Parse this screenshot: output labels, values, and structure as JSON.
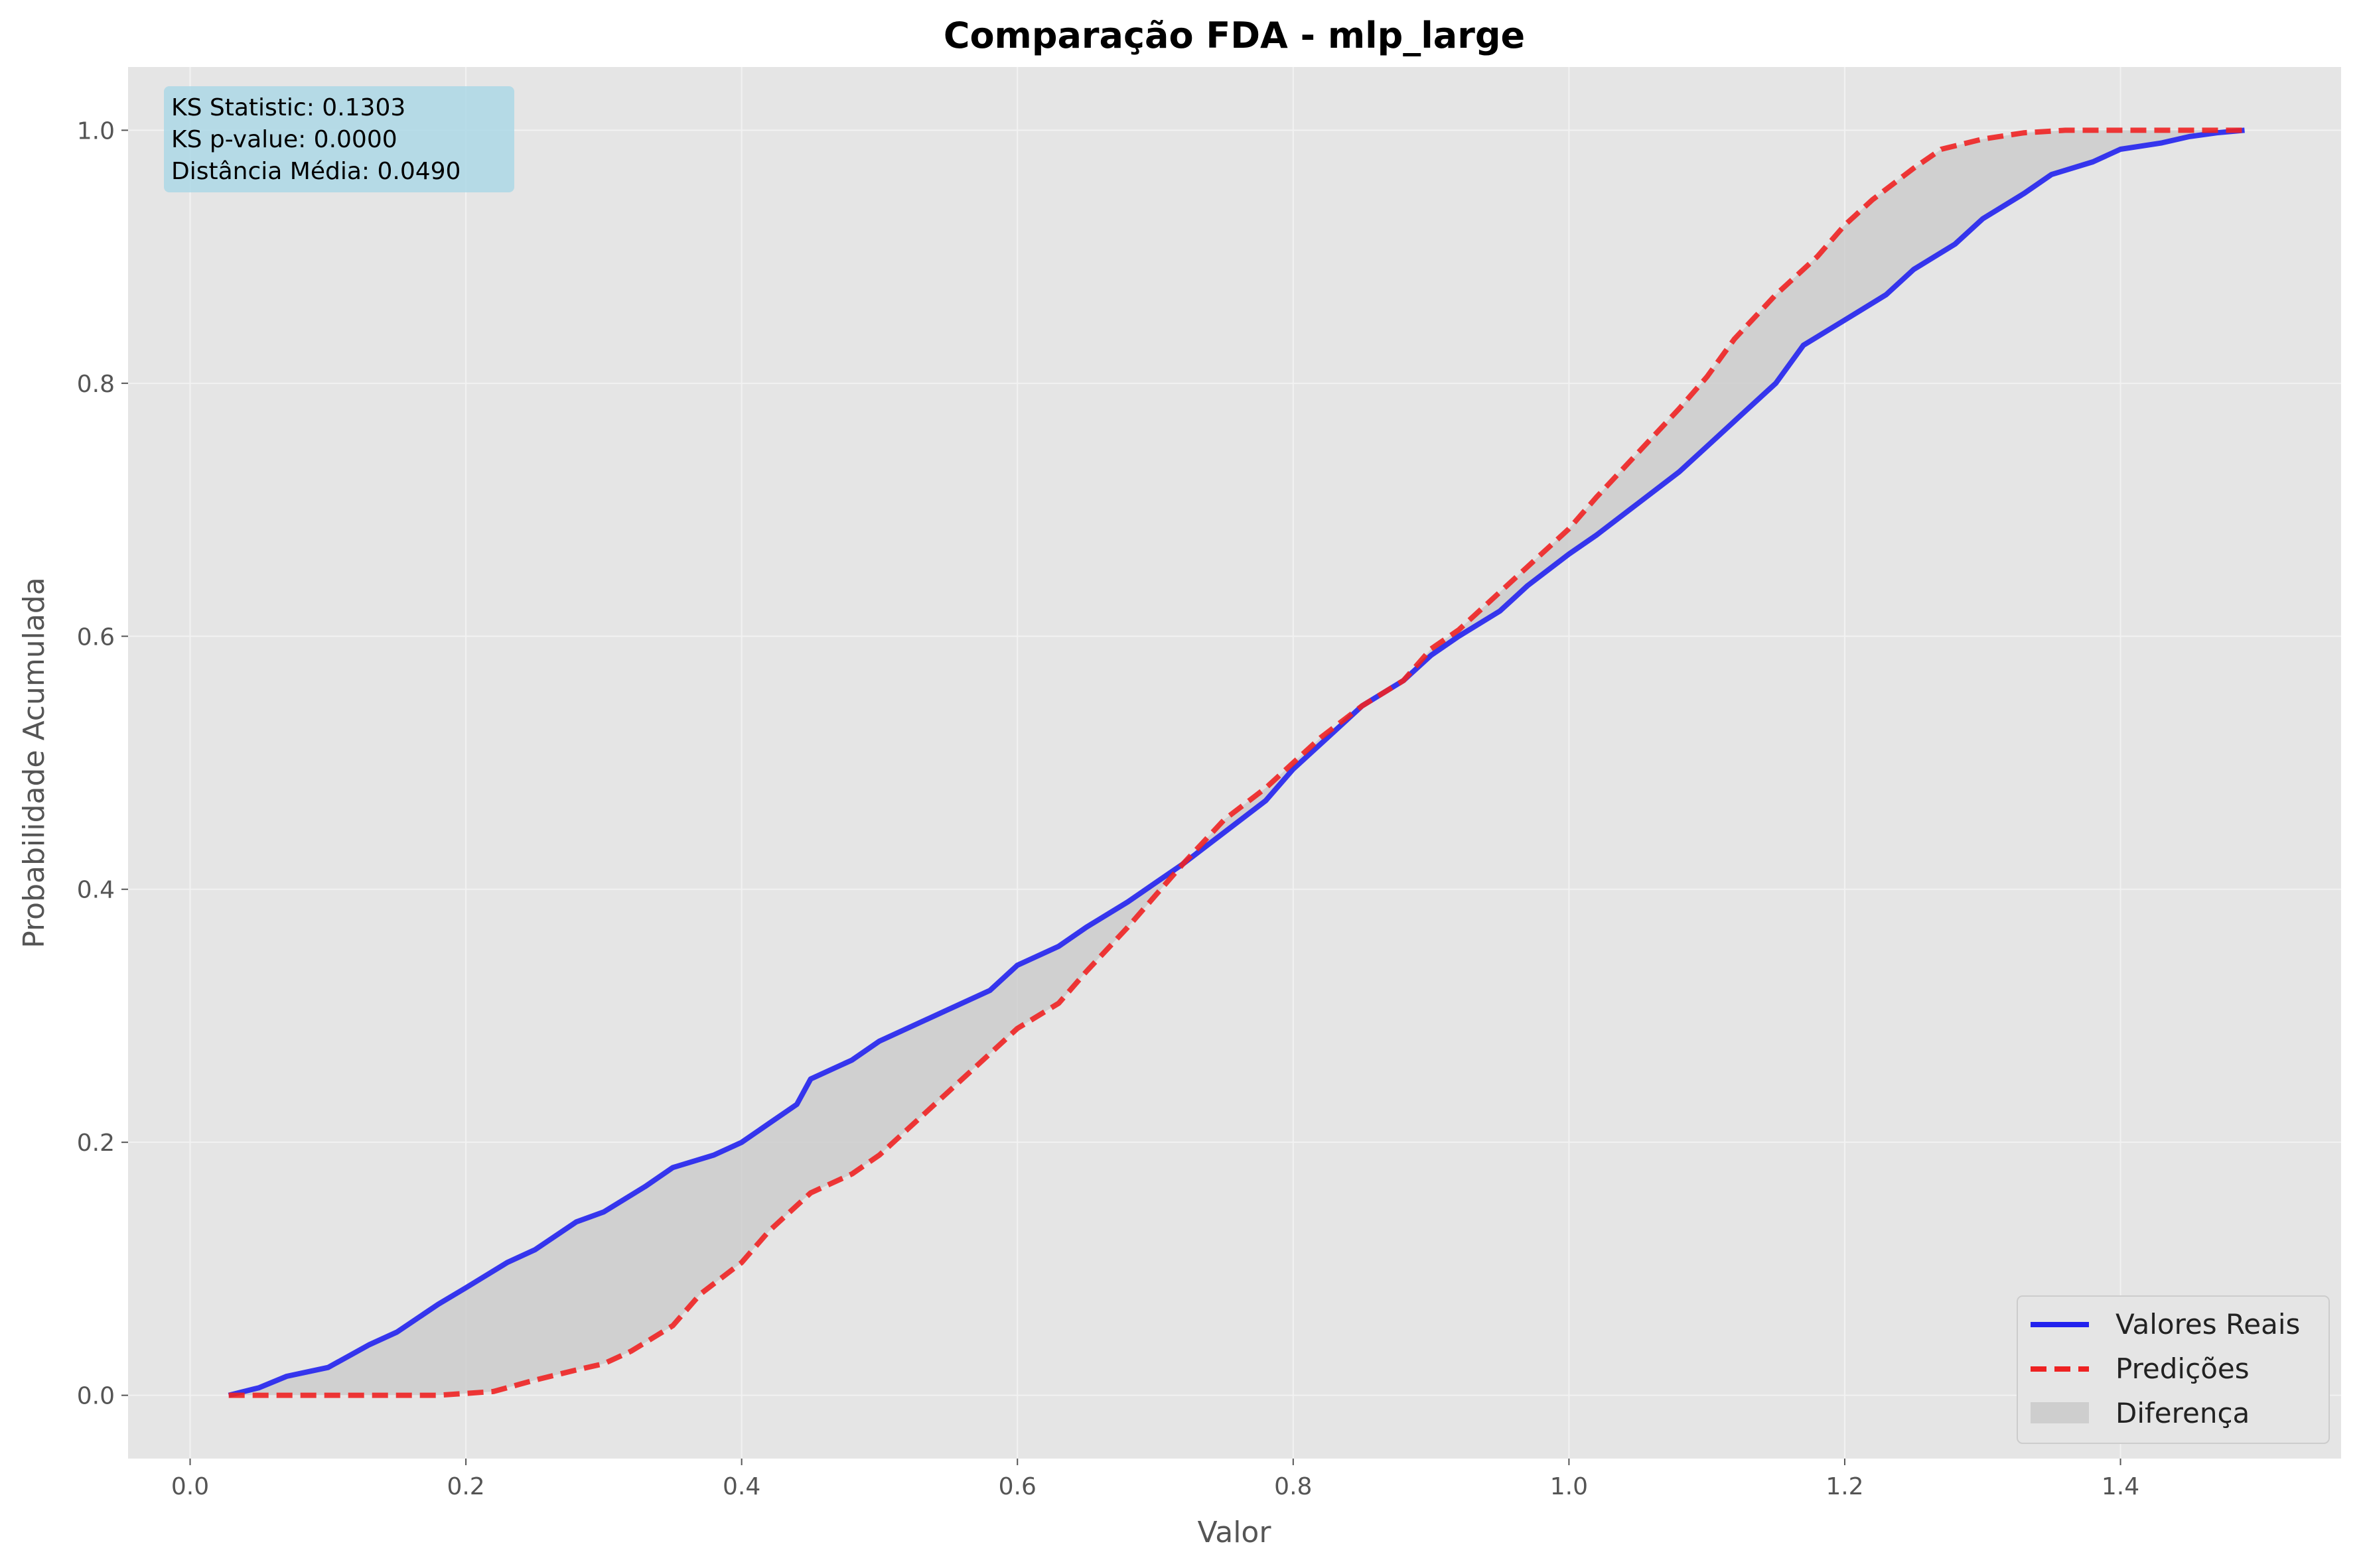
{
  "chart_data": {
    "type": "line",
    "title": "Comparação FDA - mlp_large",
    "xlabel": "Valor",
    "ylabel": "Probabilidade Acumulada",
    "xlim": [
      -0.045,
      1.56
    ],
    "ylim": [
      -0.05,
      1.05
    ],
    "xticks": [
      0.0,
      0.2,
      0.4,
      0.6,
      0.8,
      1.0,
      1.2,
      1.4
    ],
    "yticks": [
      0.0,
      0.2,
      0.4,
      0.6,
      0.8,
      1.0
    ],
    "xtick_labels": [
      "0.0",
      "0.2",
      "0.4",
      "0.6",
      "0.8",
      "1.0",
      "1.2",
      "1.4"
    ],
    "ytick_labels": [
      "0.0",
      "0.2",
      "0.4",
      "0.6",
      "0.8",
      "1.0"
    ],
    "grid": true,
    "legend_position": "lower-right",
    "stats_box": [
      "KS Statistic: 0.1303",
      "KS p-value: 0.0000",
      "Distância Média: 0.0490"
    ],
    "series": [
      {
        "name": "Valores Reais",
        "color": "#2222ee",
        "style": "solid",
        "x": [
          0.028,
          0.05,
          0.07,
          0.1,
          0.13,
          0.15,
          0.18,
          0.2,
          0.23,
          0.25,
          0.28,
          0.3,
          0.33,
          0.35,
          0.38,
          0.4,
          0.42,
          0.44,
          0.45,
          0.48,
          0.5,
          0.52,
          0.55,
          0.58,
          0.6,
          0.63,
          0.65,
          0.68,
          0.7,
          0.72,
          0.75,
          0.78,
          0.8,
          0.82,
          0.85,
          0.88,
          0.9,
          0.92,
          0.95,
          0.97,
          1.0,
          1.02,
          1.05,
          1.08,
          1.1,
          1.12,
          1.15,
          1.17,
          1.2,
          1.23,
          1.25,
          1.28,
          1.3,
          1.33,
          1.35,
          1.38,
          1.4,
          1.43,
          1.45,
          1.47,
          1.49
        ],
        "y": [
          0.0,
          0.006,
          0.015,
          0.022,
          0.04,
          0.05,
          0.072,
          0.085,
          0.105,
          0.115,
          0.137,
          0.145,
          0.165,
          0.18,
          0.19,
          0.2,
          0.215,
          0.23,
          0.25,
          0.265,
          0.28,
          0.29,
          0.305,
          0.32,
          0.34,
          0.355,
          0.37,
          0.39,
          0.405,
          0.42,
          0.445,
          0.47,
          0.495,
          0.515,
          0.545,
          0.565,
          0.585,
          0.6,
          0.62,
          0.64,
          0.665,
          0.68,
          0.705,
          0.73,
          0.75,
          0.77,
          0.8,
          0.83,
          0.85,
          0.87,
          0.89,
          0.91,
          0.93,
          0.95,
          0.965,
          0.975,
          0.985,
          0.99,
          0.995,
          0.998,
          1.0
        ]
      },
      {
        "name": "Predições",
        "color": "#ee2222",
        "style": "dashed",
        "x": [
          0.028,
          0.1,
          0.18,
          0.22,
          0.25,
          0.28,
          0.3,
          0.32,
          0.35,
          0.37,
          0.4,
          0.42,
          0.45,
          0.48,
          0.5,
          0.52,
          0.55,
          0.58,
          0.6,
          0.63,
          0.65,
          0.68,
          0.7,
          0.72,
          0.75,
          0.78,
          0.8,
          0.82,
          0.85,
          0.88,
          0.9,
          0.92,
          0.95,
          0.97,
          1.0,
          1.02,
          1.05,
          1.08,
          1.1,
          1.12,
          1.15,
          1.18,
          1.2,
          1.22,
          1.25,
          1.27,
          1.3,
          1.33,
          1.36,
          1.4,
          1.45,
          1.49
        ],
        "y": [
          0.0,
          0.0,
          0.0,
          0.003,
          0.012,
          0.02,
          0.025,
          0.035,
          0.055,
          0.08,
          0.105,
          0.13,
          0.16,
          0.175,
          0.19,
          0.21,
          0.24,
          0.27,
          0.29,
          0.31,
          0.335,
          0.37,
          0.395,
          0.42,
          0.455,
          0.48,
          0.5,
          0.52,
          0.545,
          0.565,
          0.59,
          0.605,
          0.635,
          0.655,
          0.685,
          0.71,
          0.745,
          0.78,
          0.805,
          0.835,
          0.87,
          0.9,
          0.925,
          0.945,
          0.97,
          0.985,
          0.993,
          0.998,
          1.0,
          1.0,
          1.0,
          1.0
        ]
      }
    ],
    "fill_between": {
      "name": "Diferença",
      "color": "#c8c8c8"
    }
  }
}
